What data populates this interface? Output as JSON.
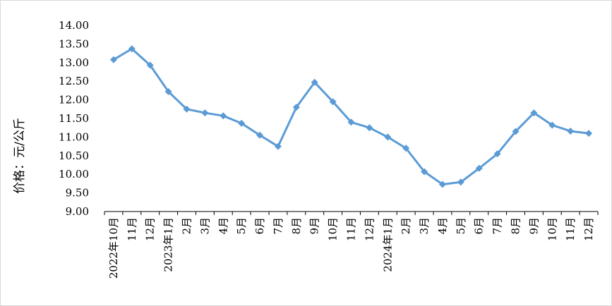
{
  "chart_data": {
    "type": "line",
    "title": "",
    "xlabel": "",
    "ylabel": "价格：元/公斤",
    "ylim": [
      9.0,
      14.0
    ],
    "ytick_step": 0.5,
    "ytick_labels": [
      "9.00",
      "9.50",
      "10.00",
      "10.50",
      "11.00",
      "11.50",
      "12.00",
      "12.50",
      "13.00",
      "13.50",
      "14.00"
    ],
    "grid": false,
    "legend": "none",
    "line_color": "#5b9bd5",
    "categories": [
      "2022年10月",
      "11月",
      "12月",
      "2023年1月",
      "2月",
      "3月",
      "4月",
      "5月",
      "6月",
      "7月",
      "8月",
      "9月",
      "10月",
      "11月",
      "12月",
      "2024年1月",
      "2月",
      "3月",
      "4月",
      "5月",
      "6月",
      "7月",
      "8月",
      "9月",
      "10月",
      "11月",
      "12月"
    ],
    "series": [
      {
        "values": [
          13.08,
          13.37,
          12.93,
          12.22,
          11.75,
          11.65,
          11.57,
          11.37,
          11.05,
          10.75,
          11.8,
          12.47,
          11.95,
          11.4,
          11.25,
          11.0,
          10.7,
          10.07,
          9.73,
          9.79,
          10.16,
          10.55,
          11.15,
          11.65,
          11.32,
          11.16,
          11.1
        ]
      }
    ]
  }
}
